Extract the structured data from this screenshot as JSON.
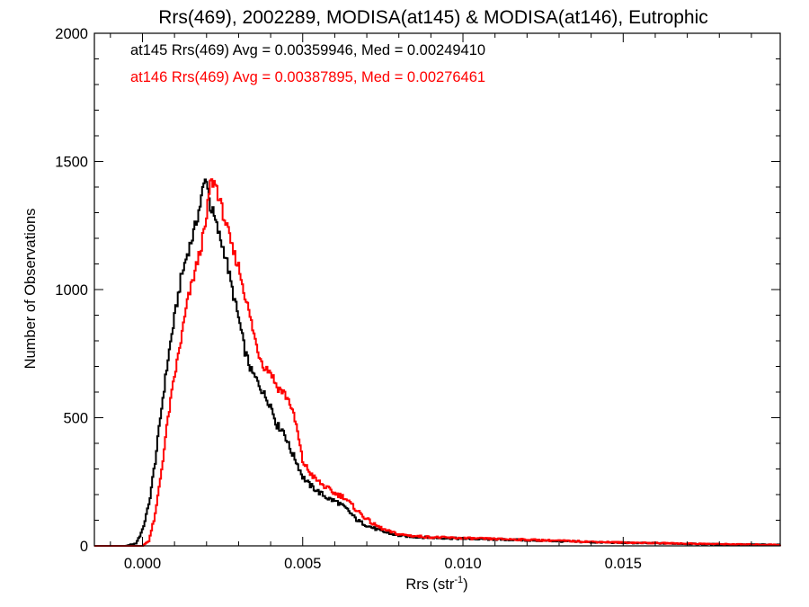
{
  "chart_data": {
    "type": "line",
    "title": "Rrs(469), 2002289, MODISA(at145) & MODISA(at146), Eutrophic",
    "xlabel_main": "Rrs (str",
    "xlabel_sup": "-1",
    "xlabel_tail": ")",
    "ylabel": "Number of Observations",
    "xlim": [
      -0.0015,
      0.0199
    ],
    "ylim": [
      0,
      2000
    ],
    "x_ticks": [
      0.0,
      0.005,
      0.01,
      0.015
    ],
    "x_tick_labels": [
      "0.000",
      "0.005",
      "0.010",
      "0.015"
    ],
    "y_ticks": [
      0,
      500,
      1000,
      1500,
      2000
    ],
    "y_tick_labels": [
      "0",
      "500",
      "1000",
      "1500",
      "2000"
    ],
    "grid": false,
    "step_style": "histogram",
    "annotations": [
      {
        "text": "at145 Rrs(469) Avg = 0.00359946, Med = 0.00249410",
        "color": "#000000"
      },
      {
        "text": "at146 Rrs(469) Avg = 0.00387895, Med = 0.00276461",
        "color": "#ff0000"
      }
    ],
    "series": [
      {
        "color": "#000000",
        "points": [
          [
            -0.0015,
            0
          ],
          [
            -0.0005,
            0
          ],
          [
            -0.0002,
            10
          ],
          [
            0.0,
            60
          ],
          [
            0.0002,
            160
          ],
          [
            0.0004,
            330
          ],
          [
            0.0006,
            540
          ],
          [
            0.0008,
            730
          ],
          [
            0.001,
            890
          ],
          [
            0.0012,
            1040
          ],
          [
            0.0014,
            1140
          ],
          [
            0.0016,
            1220
          ],
          [
            0.0018,
            1330
          ],
          [
            0.0019,
            1400
          ],
          [
            0.002,
            1440
          ],
          [
            0.0021,
            1330
          ],
          [
            0.0022,
            1300
          ],
          [
            0.0024,
            1210
          ],
          [
            0.0026,
            1130
          ],
          [
            0.0028,
            1000
          ],
          [
            0.003,
            890
          ],
          [
            0.0032,
            760
          ],
          [
            0.0034,
            680
          ],
          [
            0.0036,
            640
          ],
          [
            0.0038,
            590
          ],
          [
            0.004,
            550
          ],
          [
            0.0042,
            470
          ],
          [
            0.0044,
            450
          ],
          [
            0.0046,
            380
          ],
          [
            0.0048,
            330
          ],
          [
            0.005,
            270
          ],
          [
            0.0052,
            240
          ],
          [
            0.0055,
            210
          ],
          [
            0.0058,
            185
          ],
          [
            0.0061,
            170
          ],
          [
            0.0064,
            140
          ],
          [
            0.0067,
            100
          ],
          [
            0.007,
            80
          ],
          [
            0.0075,
            55
          ],
          [
            0.008,
            40
          ],
          [
            0.0085,
            35
          ],
          [
            0.009,
            32
          ],
          [
            0.0095,
            30
          ],
          [
            0.01,
            28
          ],
          [
            0.011,
            25
          ],
          [
            0.012,
            22
          ],
          [
            0.013,
            18
          ],
          [
            0.014,
            14
          ],
          [
            0.015,
            12
          ],
          [
            0.016,
            10
          ],
          [
            0.017,
            8
          ],
          [
            0.018,
            6
          ],
          [
            0.019,
            5
          ],
          [
            0.0199,
            4
          ]
        ]
      },
      {
        "color": "#ff0000",
        "points": [
          [
            -0.0015,
            0
          ],
          [
            0.0,
            0
          ],
          [
            0.0002,
            20
          ],
          [
            0.0004,
            120
          ],
          [
            0.0006,
            300
          ],
          [
            0.0008,
            500
          ],
          [
            0.001,
            660
          ],
          [
            0.0012,
            800
          ],
          [
            0.0014,
            950
          ],
          [
            0.0016,
            1050
          ],
          [
            0.0018,
            1150
          ],
          [
            0.002,
            1270
          ],
          [
            0.0021,
            1410
          ],
          [
            0.0022,
            1420
          ],
          [
            0.0023,
            1410
          ],
          [
            0.0024,
            1350
          ],
          [
            0.0026,
            1260
          ],
          [
            0.0028,
            1160
          ],
          [
            0.003,
            1090
          ],
          [
            0.0032,
            980
          ],
          [
            0.0034,
            870
          ],
          [
            0.0036,
            760
          ],
          [
            0.0038,
            700
          ],
          [
            0.004,
            680
          ],
          [
            0.0042,
            620
          ],
          [
            0.0044,
            600
          ],
          [
            0.0046,
            560
          ],
          [
            0.0048,
            470
          ],
          [
            0.005,
            330
          ],
          [
            0.0052,
            290
          ],
          [
            0.0054,
            260
          ],
          [
            0.0057,
            230
          ],
          [
            0.006,
            205
          ],
          [
            0.0063,
            190
          ],
          [
            0.0066,
            150
          ],
          [
            0.0069,
            115
          ],
          [
            0.0072,
            85
          ],
          [
            0.0076,
            60
          ],
          [
            0.008,
            45
          ],
          [
            0.0085,
            38
          ],
          [
            0.009,
            34
          ],
          [
            0.0095,
            32
          ],
          [
            0.01,
            30
          ],
          [
            0.011,
            27
          ],
          [
            0.012,
            24
          ],
          [
            0.013,
            20
          ],
          [
            0.014,
            16
          ],
          [
            0.015,
            13
          ],
          [
            0.016,
            11
          ],
          [
            0.017,
            9
          ],
          [
            0.018,
            7
          ],
          [
            0.019,
            5
          ],
          [
            0.0199,
            4
          ]
        ]
      }
    ]
  }
}
